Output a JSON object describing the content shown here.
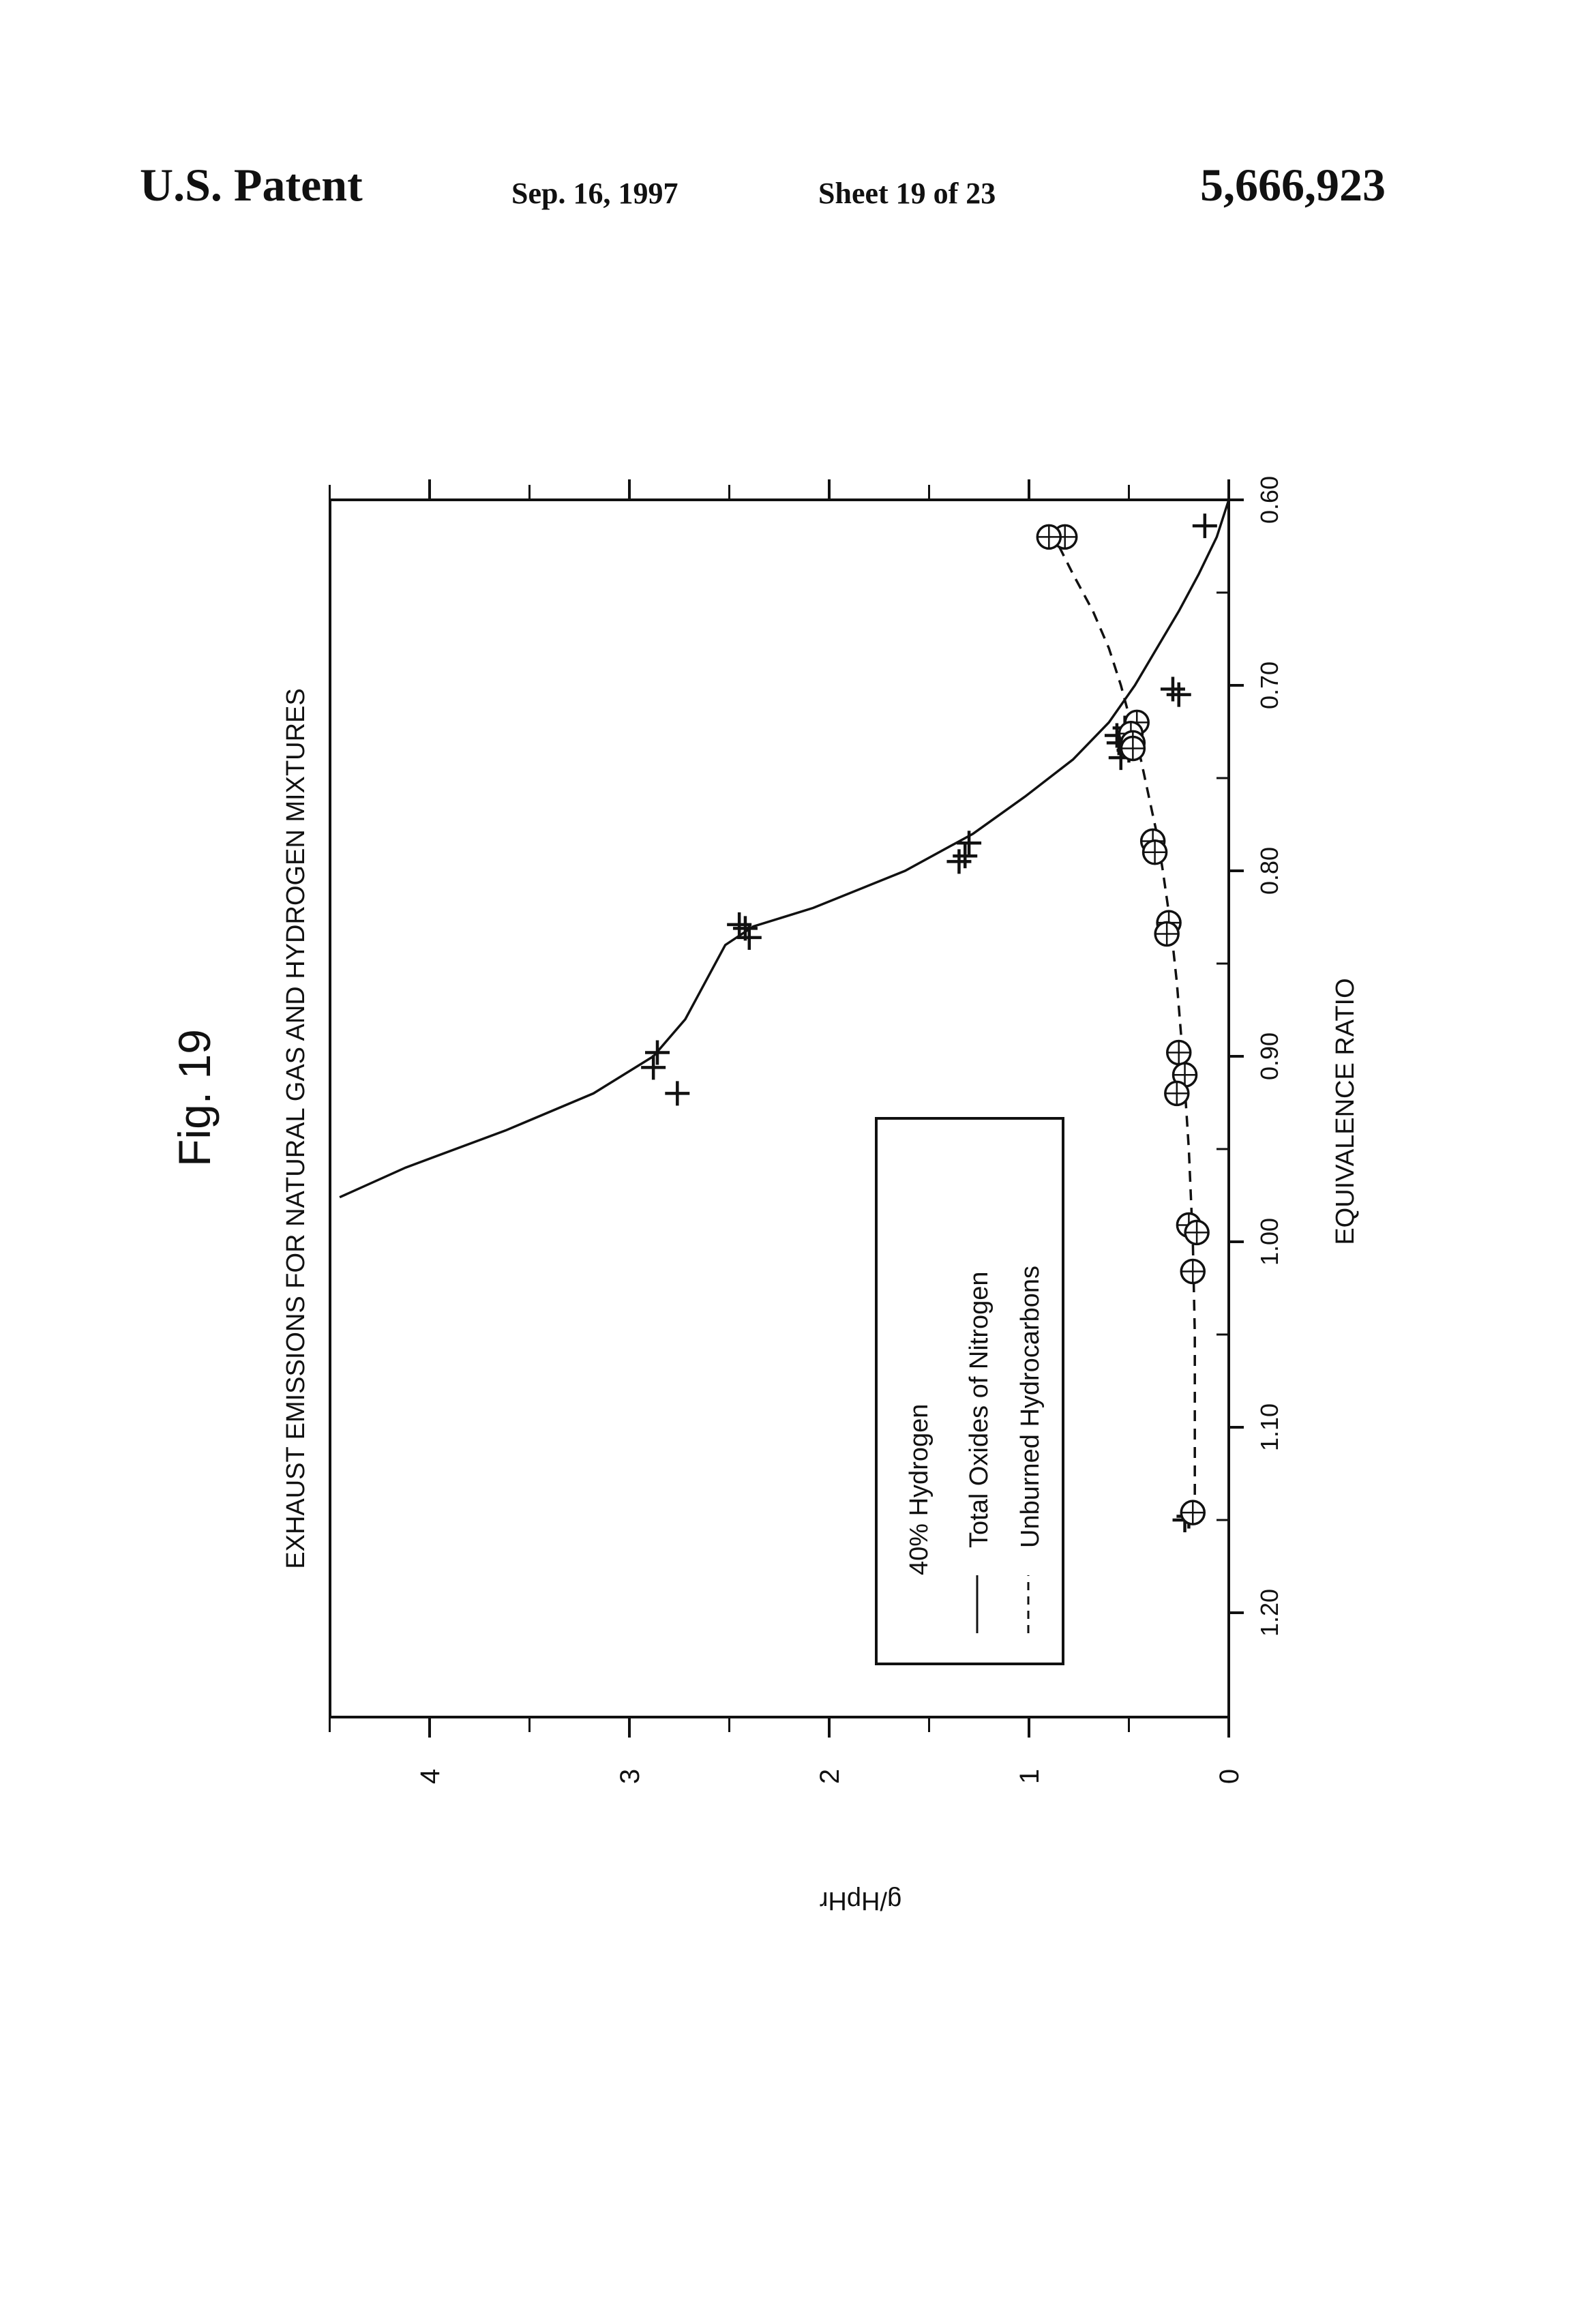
{
  "header": {
    "patent": "U.S. Patent",
    "date": "Sep. 16, 1997",
    "sheet": "Sheet 19 of 23",
    "patent_number": "5,666,923"
  },
  "figure_label": "Fig. 19",
  "chart_data": {
    "type": "scatter",
    "title": "EXHAUST EMISSIONS FOR NATURAL GAS AND HYDROGEN MIXTURES",
    "xlabel": "EQUIVALENCE RATIO",
    "ylabel": "g/HpHr",
    "xlim": [
      0.6,
      1.25
    ],
    "ylim": [
      0,
      4.5
    ],
    "x_ticks": [
      "0.60",
      "0.70",
      "0.80",
      "0.90",
      "1.00",
      "1.10",
      "1.20"
    ],
    "y_ticks": [
      "0",
      "1",
      "2",
      "3",
      "4"
    ],
    "orientation": "rotated 90° counter-clockwise on the page",
    "legend": {
      "title": "40% Hydrogen",
      "entries": [
        "Total Oxides of Nitrogen",
        "Unburned Hydrocarbons"
      ]
    },
    "series": [
      {
        "name": "Total Oxides of Nitrogen",
        "marker": "plus",
        "line": "solid",
        "points": [
          [
            0.614,
            0.12
          ],
          [
            0.702,
            0.28
          ],
          [
            0.705,
            0.25
          ],
          [
            0.723,
            0.52
          ],
          [
            0.727,
            0.56
          ],
          [
            0.731,
            0.55
          ],
          [
            0.735,
            0.5
          ],
          [
            0.739,
            0.54
          ],
          [
            0.785,
            1.3
          ],
          [
            0.792,
            1.32
          ],
          [
            0.795,
            1.35
          ],
          [
            0.829,
            2.45
          ],
          [
            0.831,
            2.42
          ],
          [
            0.836,
            2.4
          ],
          [
            0.898,
            2.86
          ],
          [
            0.906,
            2.88
          ],
          [
            0.92,
            2.76
          ],
          [
            1.148,
            0.2
          ],
          [
            1.15,
            0.22
          ]
        ],
        "curve": [
          [
            0.6,
            0.0
          ],
          [
            0.62,
            0.06
          ],
          [
            0.64,
            0.15
          ],
          [
            0.66,
            0.25
          ],
          [
            0.68,
            0.36
          ],
          [
            0.7,
            0.47
          ],
          [
            0.72,
            0.6
          ],
          [
            0.74,
            0.78
          ],
          [
            0.76,
            1.02
          ],
          [
            0.78,
            1.28
          ],
          [
            0.8,
            1.62
          ],
          [
            0.82,
            2.08
          ],
          [
            0.83,
            2.38
          ],
          [
            0.84,
            2.52
          ],
          [
            0.86,
            2.62
          ],
          [
            0.88,
            2.72
          ],
          [
            0.9,
            2.88
          ],
          [
            0.92,
            3.18
          ],
          [
            0.94,
            3.62
          ],
          [
            0.96,
            4.12
          ],
          [
            0.976,
            4.45
          ]
        ]
      },
      {
        "name": "Unburned Hydrocarbons",
        "marker": "circle-plus",
        "line": "dashed",
        "points": [
          [
            0.62,
            0.82
          ],
          [
            0.62,
            0.9
          ],
          [
            0.72,
            0.46
          ],
          [
            0.726,
            0.49
          ],
          [
            0.731,
            0.48
          ],
          [
            0.734,
            0.48
          ],
          [
            0.784,
            0.38
          ],
          [
            0.79,
            0.37
          ],
          [
            0.828,
            0.3
          ],
          [
            0.834,
            0.31
          ],
          [
            0.898,
            0.25
          ],
          [
            0.91,
            0.22
          ],
          [
            0.92,
            0.26
          ],
          [
            0.991,
            0.2
          ],
          [
            0.995,
            0.16
          ],
          [
            1.016,
            0.18
          ],
          [
            1.146,
            0.18
          ]
        ],
        "curve": [
          [
            0.625,
            0.85
          ],
          [
            0.64,
            0.78
          ],
          [
            0.66,
            0.68
          ],
          [
            0.68,
            0.6
          ],
          [
            0.7,
            0.54
          ],
          [
            0.72,
            0.49
          ],
          [
            0.74,
            0.44
          ],
          [
            0.76,
            0.4
          ],
          [
            0.78,
            0.36
          ],
          [
            0.8,
            0.33
          ],
          [
            0.83,
            0.29
          ],
          [
            0.86,
            0.26
          ],
          [
            0.9,
            0.23
          ],
          [
            0.95,
            0.2
          ],
          [
            1.0,
            0.18
          ],
          [
            1.05,
            0.17
          ],
          [
            1.1,
            0.17
          ],
          [
            1.15,
            0.17
          ]
        ]
      }
    ]
  }
}
